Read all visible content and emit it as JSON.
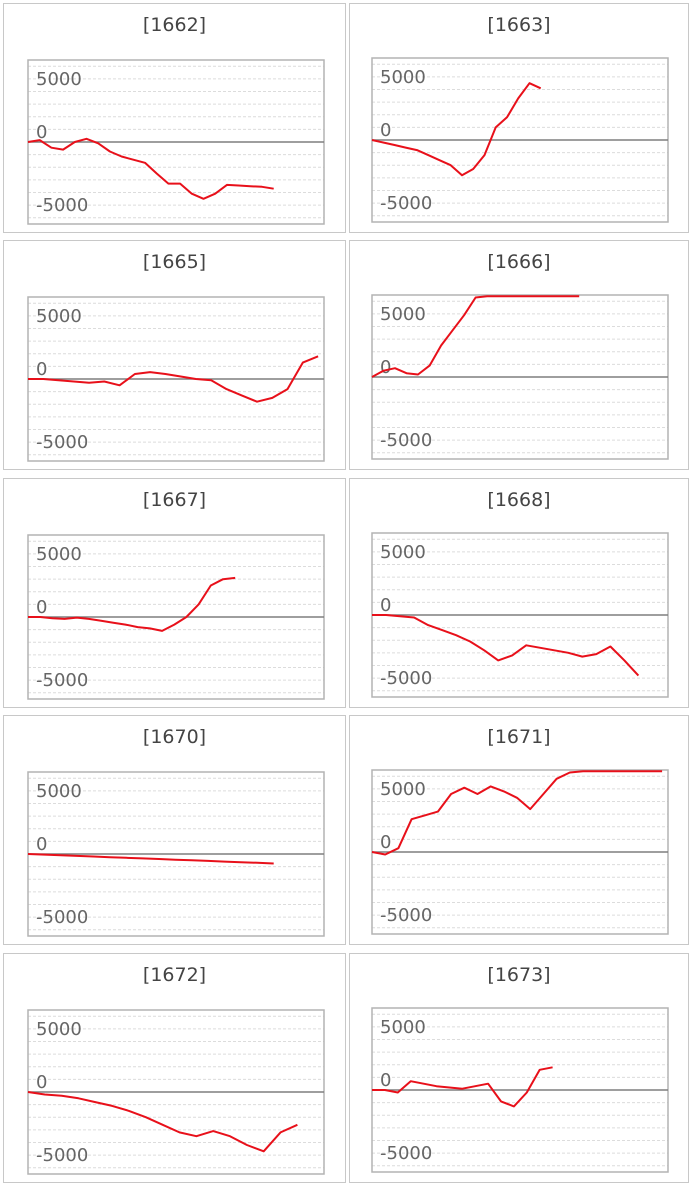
{
  "colors": {
    "line": "#e8101a",
    "zero": "#7f7f7f",
    "grid": "#dcdcdc",
    "frame": "#b3b3b3"
  },
  "chart_data": [
    {
      "title": "[1662]",
      "type": "line",
      "ylim": [
        -6500,
        6500
      ],
      "yticks": [
        "5000",
        "0",
        "-5000"
      ],
      "y": [
        0,
        150,
        -450,
        -600,
        0,
        250,
        -100,
        -750,
        -1150,
        -1400,
        -1650,
        -2500,
        -3300,
        -3300,
        -4100,
        -4500,
        -4100,
        -3400,
        -3450,
        -3500,
        -3550,
        -3700
      ]
    },
    {
      "title": "[1663]",
      "type": "line",
      "ylim": [
        -6500,
        6500
      ],
      "yticks": [
        "5000",
        "0",
        "-5000"
      ],
      "y": [
        0,
        -200,
        -400,
        -600,
        -800,
        -1200,
        -1600,
        -2000,
        -2800,
        -2300,
        -1200,
        1000,
        1800,
        3300,
        4500,
        4100
      ]
    },
    {
      "title": "[1665]",
      "type": "line",
      "ylim": [
        -6500,
        6500
      ],
      "yticks": [
        "5000",
        "0",
        "-5000"
      ],
      "y": [
        0,
        0,
        -100,
        -200,
        -300,
        -200,
        -500,
        400,
        550,
        400,
        200,
        0,
        -100,
        -800,
        -1300,
        -1800,
        -1500,
        -800,
        1300,
        1800
      ]
    },
    {
      "title": "[1666]",
      "type": "line",
      "ylim": [
        -6500,
        6500
      ],
      "yticks": [
        "5000",
        "0",
        "-5000"
      ],
      "y": [
        0,
        500,
        700,
        300,
        200,
        900,
        2500,
        3700,
        4900,
        6300,
        6400,
        6400,
        6400,
        6400,
        6400,
        6400,
        6400,
        6400,
        6400
      ]
    },
    {
      "title": "[1667]",
      "type": "line",
      "ylim": [
        -6500,
        6500
      ],
      "yticks": [
        "5000",
        "0",
        "-5000"
      ],
      "y": [
        0,
        0,
        -100,
        -150,
        -50,
        -150,
        -300,
        -450,
        -600,
        -800,
        -900,
        -1100,
        -600,
        0,
        1000,
        2500,
        3000,
        3100
      ]
    },
    {
      "title": "[1668]",
      "type": "line",
      "ylim": [
        -6500,
        6500
      ],
      "yticks": [
        "5000",
        "0",
        "-5000"
      ],
      "y": [
        0,
        0,
        -100,
        -200,
        -800,
        -1200,
        -1600,
        -2100,
        -2800,
        -3600,
        -3200,
        -2400,
        -2600,
        -2800,
        -3000,
        -3300,
        -3100,
        -2500,
        -3600,
        -4800
      ]
    },
    {
      "title": "[1670]",
      "type": "line",
      "ylim": [
        -6500,
        6500
      ],
      "yticks": [
        "5000",
        "0",
        "-5000"
      ],
      "y": [
        0,
        -50,
        -100,
        -150,
        -200,
        -250,
        -300,
        -350,
        -400,
        -450,
        -500,
        -550,
        -600,
        -650,
        -700,
        -750
      ]
    },
    {
      "title": "[1671]",
      "type": "line",
      "ylim": [
        -6500,
        6500
      ],
      "yticks": [
        "5000",
        "0",
        "-5000"
      ],
      "y": [
        0,
        -200,
        300,
        2600,
        2900,
        3200,
        4600,
        5100,
        4600,
        5200,
        4800,
        4300,
        3400,
        4600,
        5800,
        6300,
        6400,
        6400,
        6400,
        6400,
        6400,
        6400,
        6400
      ]
    },
    {
      "title": "[1672]",
      "type": "line",
      "ylim": [
        -6500,
        6500
      ],
      "yticks": [
        "5000",
        "0",
        "-5000"
      ],
      "y": [
        0,
        -200,
        -300,
        -500,
        -800,
        -1100,
        -1500,
        -2000,
        -2600,
        -3200,
        -3500,
        -3100,
        -3500,
        -4200,
        -4700,
        -3200,
        -2600
      ]
    },
    {
      "title": "[1673]",
      "type": "line",
      "ylim": [
        -6500,
        6500
      ],
      "yticks": [
        "5000",
        "0",
        "-5000"
      ],
      "y": [
        0,
        0,
        -200,
        700,
        500,
        300,
        200,
        100,
        300,
        500,
        -900,
        -1300,
        -200,
        1600,
        1800
      ]
    }
  ]
}
